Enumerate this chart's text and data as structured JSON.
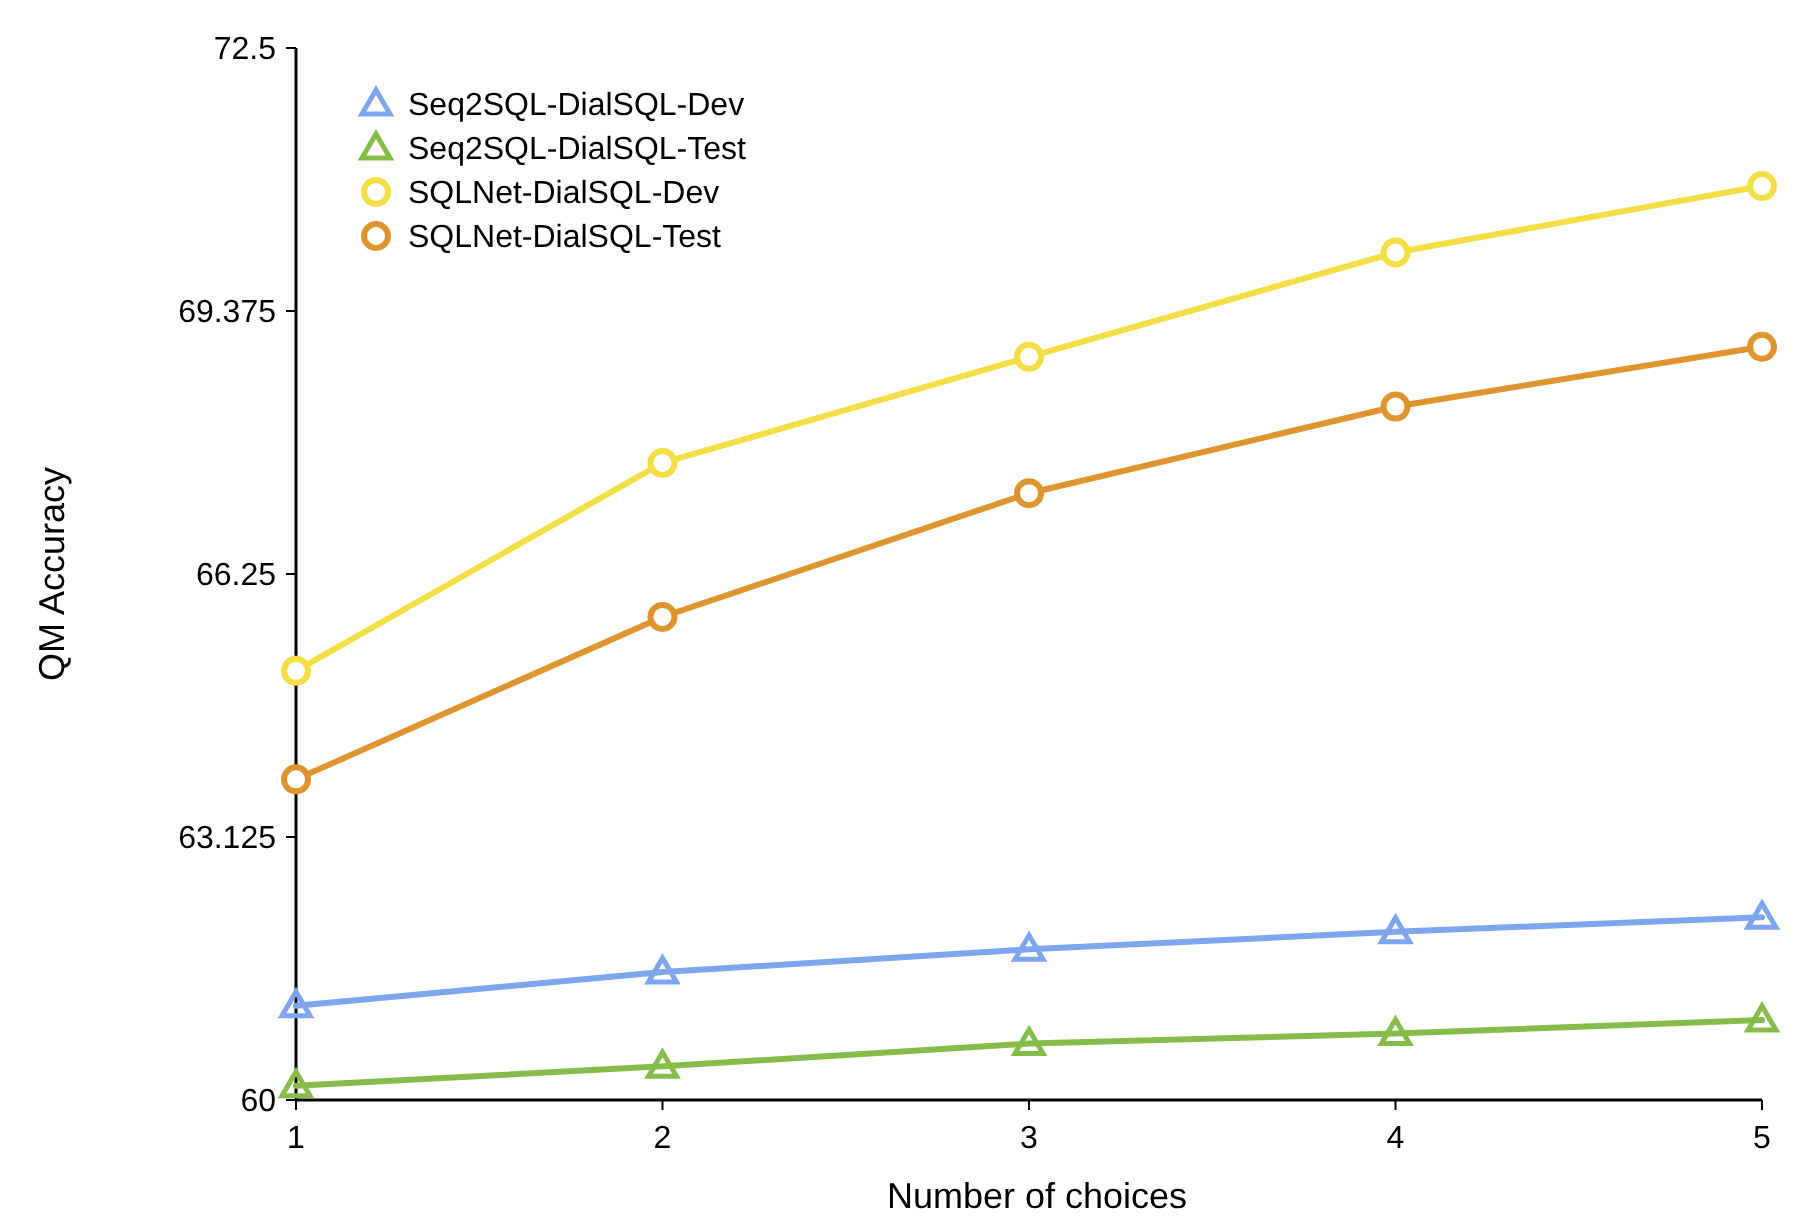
{
  "chart_data": {
    "type": "line",
    "xlabel": "Number of choices",
    "ylabel": "QM Accuracy",
    "x": [
      1,
      2,
      3,
      4,
      5
    ],
    "xlim": [
      1,
      5
    ],
    "xticks": [
      1,
      2,
      3,
      4,
      5
    ],
    "ylim": [
      60,
      72.5
    ],
    "yticks": [
      60,
      63.125,
      66.25,
      69.375,
      72.5
    ],
    "grid": false,
    "legend": "top left",
    "line_style": "solid",
    "series": [
      {
        "name": "Seq2SQL-DialSQL-Dev",
        "color": "#7ea6ef",
        "marker": "triangle",
        "values": [
          61.12,
          61.52,
          61.79,
          62.0,
          62.17
        ]
      },
      {
        "name": "Seq2SQL-DialSQL-Test",
        "color": "#86bd4a",
        "marker": "triangle",
        "values": [
          60.17,
          60.4,
          60.67,
          60.79,
          60.95
        ]
      },
      {
        "name": "SQLNet-DialSQL-Dev",
        "color": "#f3df45",
        "marker": "circle",
        "values": [
          65.1,
          67.57,
          68.83,
          70.07,
          70.86
        ]
      },
      {
        "name": "SQLNet-DialSQL-Test",
        "color": "#df952f",
        "marker": "circle",
        "values": [
          63.81,
          65.74,
          67.21,
          68.24,
          68.95
        ]
      }
    ]
  }
}
